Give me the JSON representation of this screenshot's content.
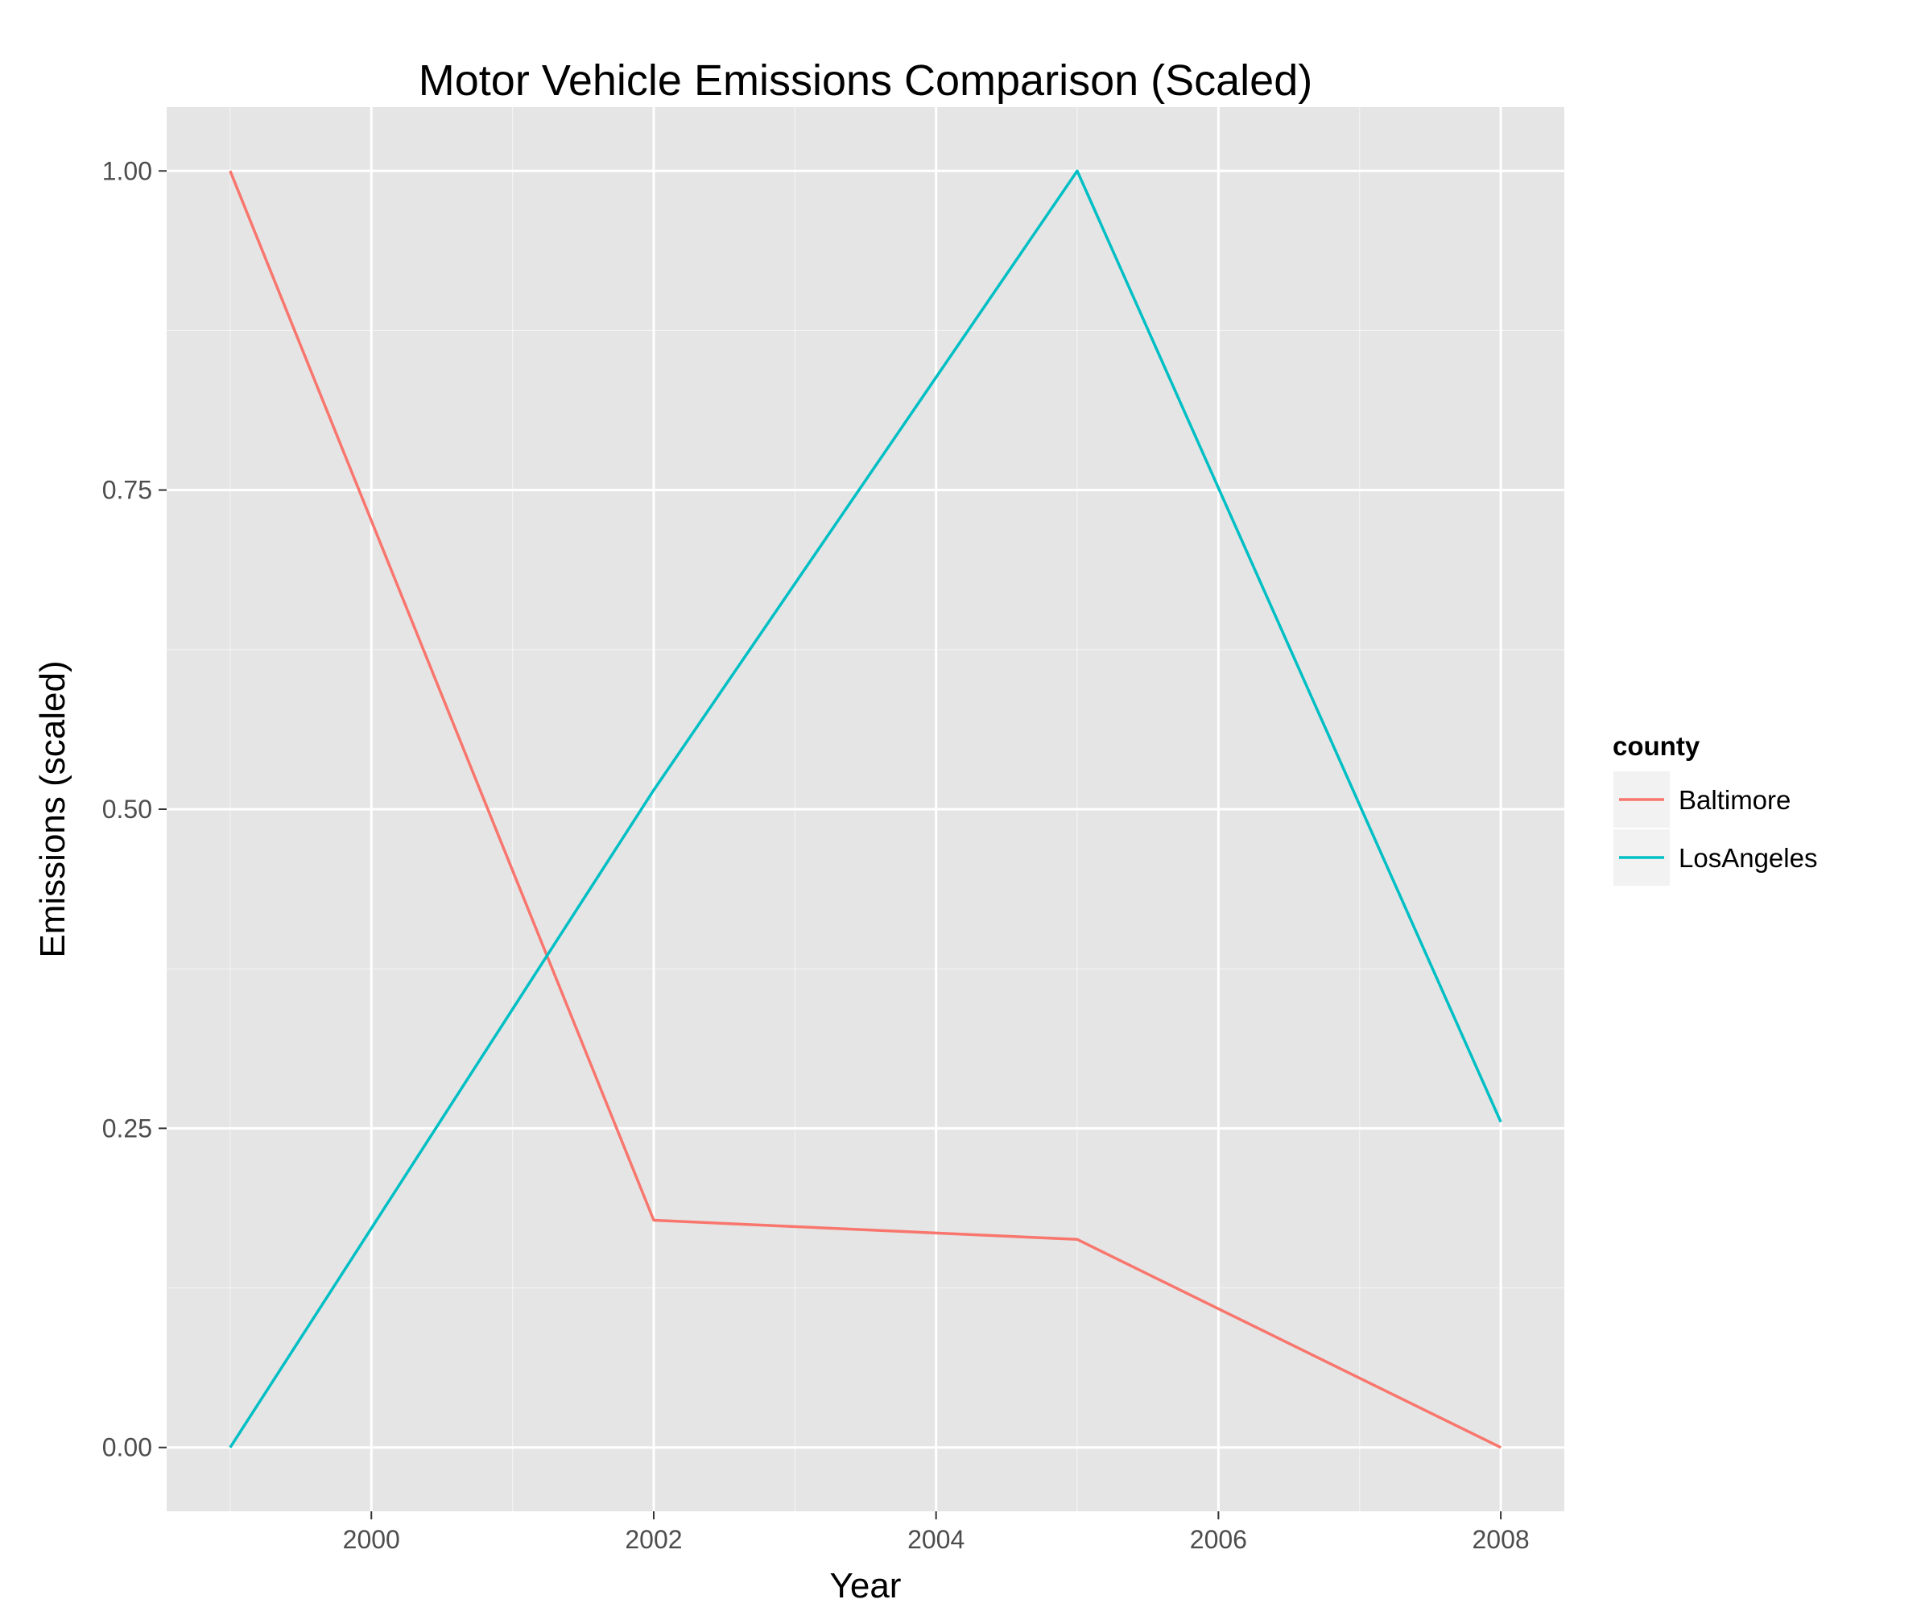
{
  "chart_data": {
    "type": "line",
    "title": "Motor Vehicle Emissions Comparison (Scaled)",
    "xlabel": "Year",
    "ylabel": "Emissions (scaled)",
    "x": [
      1999,
      2002,
      2005,
      2008
    ],
    "xlim": [
      1998.55,
      2008.45
    ],
    "ylim": [
      -0.05,
      1.05
    ],
    "x_ticks": [
      2000,
      2002,
      2004,
      2006,
      2008
    ],
    "x_tick_labels": [
      "2000",
      "2002",
      "2004",
      "2006",
      "2008"
    ],
    "y_ticks": [
      0,
      0.25,
      0.5,
      0.75,
      1.0
    ],
    "y_tick_labels": [
      "0.00",
      "0.25",
      "0.50",
      "0.75",
      "1.00"
    ],
    "grid": true,
    "legend": {
      "title": "county",
      "position": "right"
    },
    "series": [
      {
        "name": "Baltimore",
        "color": "#F8766D",
        "values": [
          1.0,
          0.178,
          0.163,
          0.0
        ]
      },
      {
        "name": "LosAngeles",
        "color": "#00BFC4",
        "values": [
          0.0,
          0.515,
          1.0,
          0.255
        ]
      }
    ],
    "panel_background": "#e5e5e5",
    "grid_color": "#ffffff"
  }
}
